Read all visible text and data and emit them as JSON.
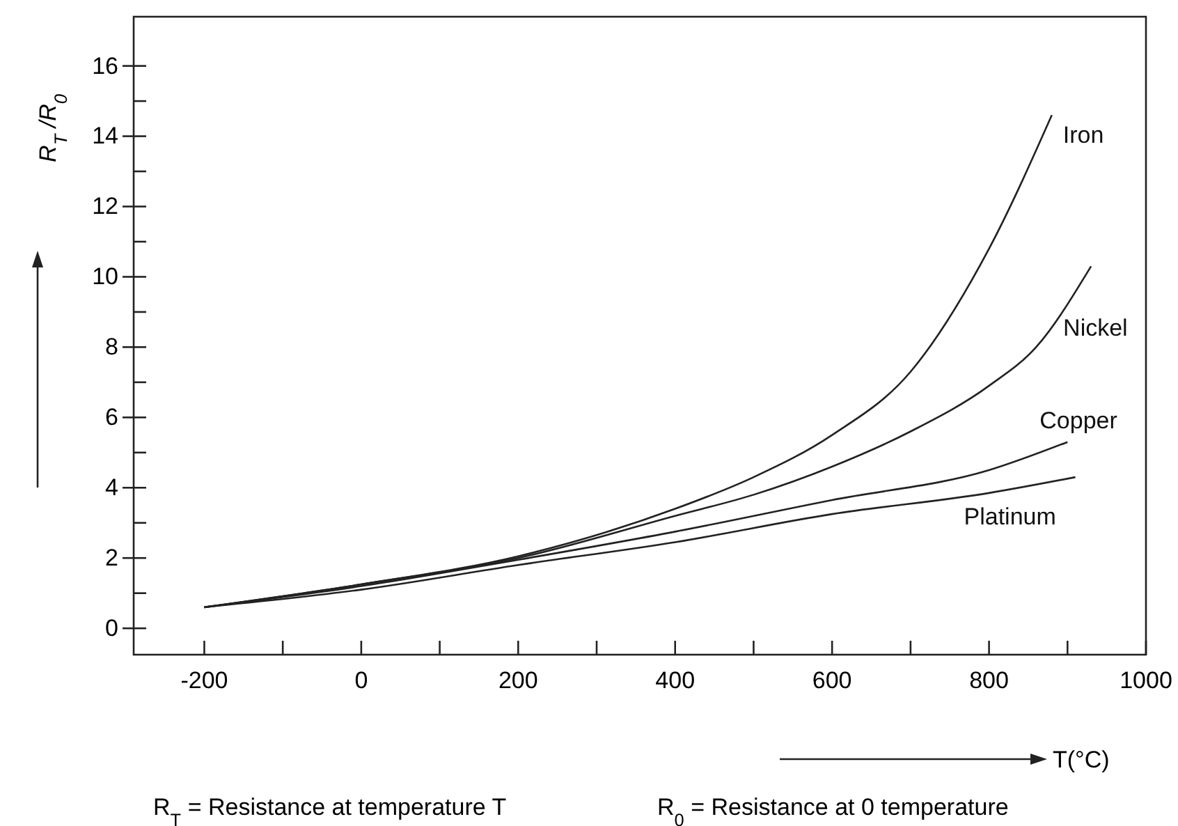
{
  "chart_data": {
    "type": "line",
    "xlabel": "T(°C)",
    "ylabel": "R$_{T}$/R$_{0}$",
    "xlim": [
      -290,
      1000
    ],
    "ylim": [
      -0.75,
      17.4
    ],
    "xticks": [
      -200,
      {
        "value": -100,
        "label": null
      },
      0,
      {
        "value": 100,
        "label": null
      },
      200,
      {
        "value": 300,
        "label": null
      },
      400,
      {
        "value": 500,
        "label": null
      },
      600,
      {
        "value": 700,
        "label": null
      },
      800,
      {
        "value": 900,
        "label": null
      },
      1000
    ],
    "yticks": [
      0,
      {
        "value": 1,
        "label": null
      },
      2,
      {
        "value": 3,
        "label": null
      },
      4,
      {
        "value": 5,
        "label": null
      },
      6,
      {
        "value": 7,
        "label": null
      },
      8,
      {
        "value": 9,
        "label": null
      },
      10,
      {
        "value": 11,
        "label": null
      },
      12,
      {
        "value": 13,
        "label": null
      },
      14,
      {
        "value": 15,
        "label": null
      },
      16
    ],
    "series": [
      {
        "name": "Iron",
        "color": "#222222",
        "x": [
          -200,
          0,
          200,
          400,
          500,
          600,
          700,
          800,
          880
        ],
        "values": [
          0.6,
          1.25,
          2.05,
          3.4,
          4.3,
          5.5,
          7.3,
          10.8,
          14.6
        ]
      },
      {
        "name": "Nickel",
        "color": "#222222",
        "x": [
          -200,
          0,
          200,
          400,
          500,
          600,
          700,
          800,
          860,
          930
        ],
        "values": [
          0.6,
          1.25,
          2.0,
          3.2,
          3.8,
          4.6,
          5.6,
          6.9,
          8.0,
          10.3
        ]
      },
      {
        "name": "Copper",
        "color": "#222222",
        "x": [
          -200,
          0,
          200,
          400,
          600,
          800,
          900
        ],
        "values": [
          0.6,
          1.2,
          1.95,
          2.75,
          3.65,
          4.5,
          5.3
        ]
      },
      {
        "name": "Platinum",
        "color": "#222222",
        "x": [
          -200,
          0,
          200,
          400,
          600,
          800,
          910
        ],
        "values": [
          0.6,
          1.1,
          1.8,
          2.45,
          3.25,
          3.85,
          4.3
        ]
      }
    ],
    "annotations": [
      "R$_{T}$ = Resistance at temperature T",
      "R$_{0}$ = Resistance at 0 temperature"
    ],
    "grid": false,
    "marker": "none",
    "line_style": "solid"
  }
}
